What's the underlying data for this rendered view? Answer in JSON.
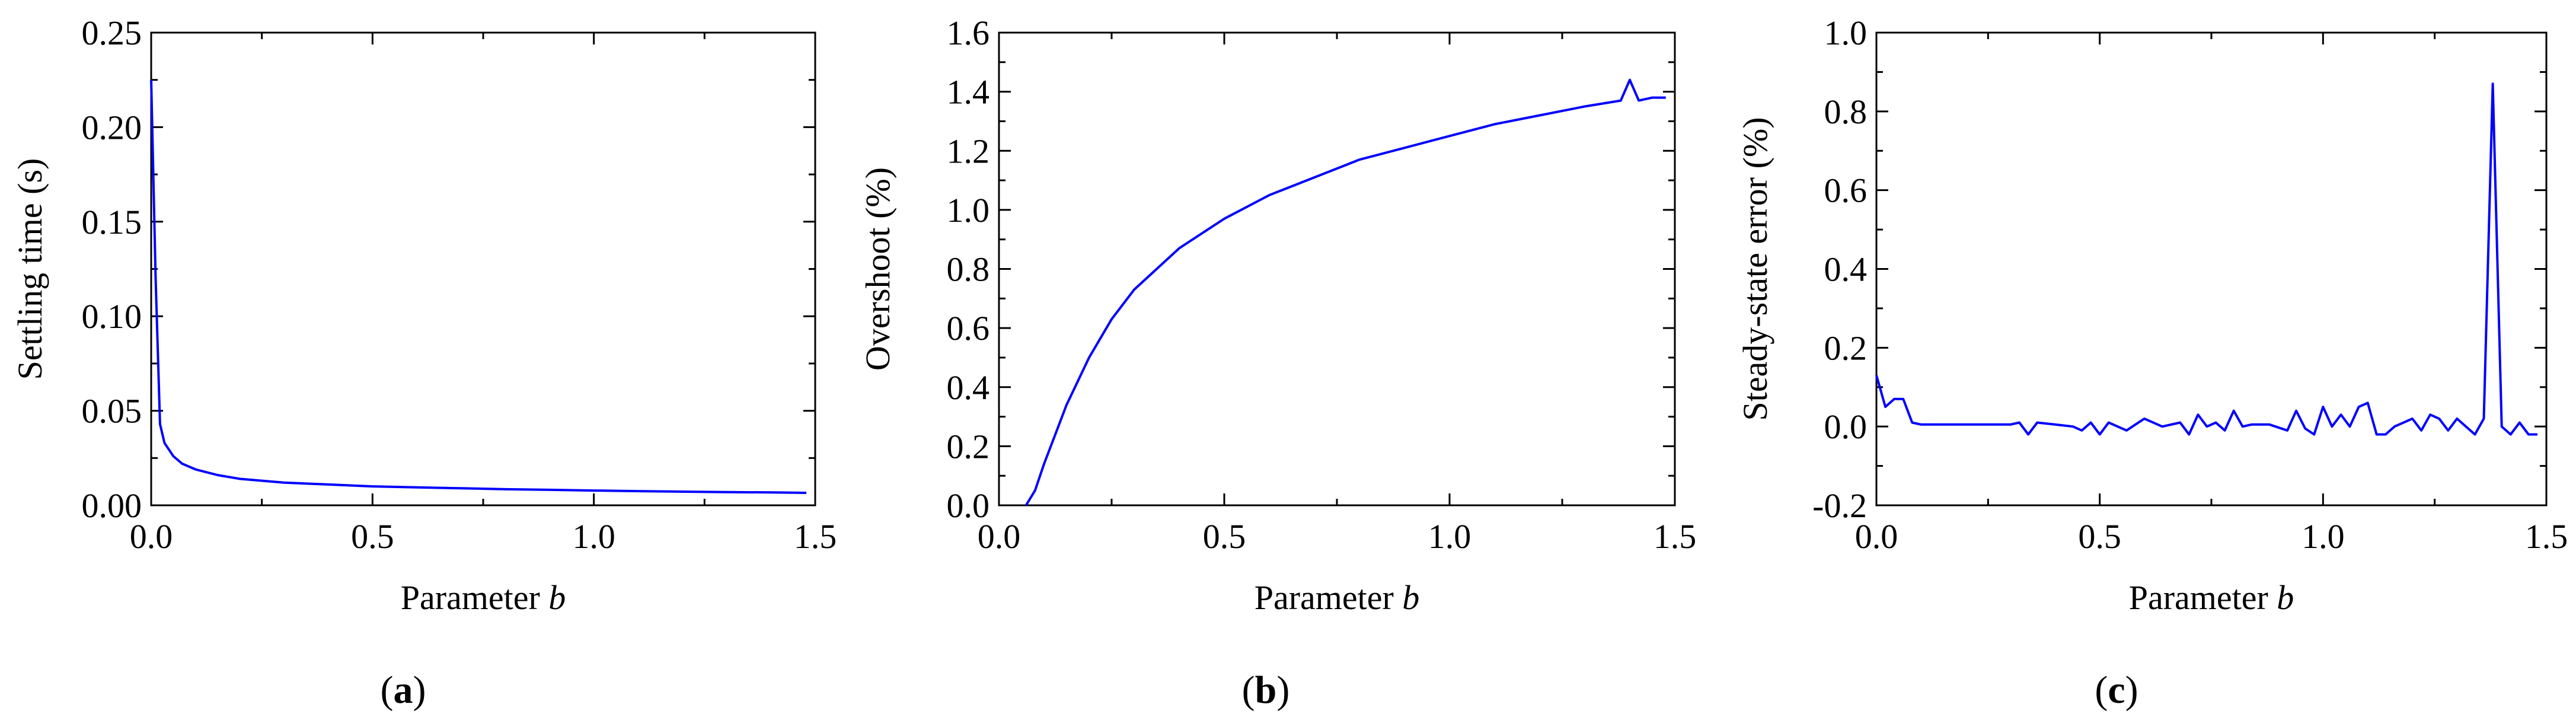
{
  "line_color": "#0000ff",
  "chart_data": [
    {
      "type": "line",
      "panel_label": "a",
      "xlabel_text": "Parameter ",
      "xlabel_var": "b",
      "ylabel": "Settling time (s)",
      "xlim": [
        0,
        1.5
      ],
      "ylim": [
        0,
        0.25
      ],
      "xticks": [
        "0.0",
        "0.5",
        "1.0",
        "1.5"
      ],
      "yticks": [
        "0.00",
        "0.05",
        "0.10",
        "0.15",
        "0.20",
        "0.25"
      ],
      "grid": false,
      "x": [
        0.0,
        0.01,
        0.02,
        0.03,
        0.05,
        0.07,
        0.1,
        0.15,
        0.2,
        0.3,
        0.4,
        0.5,
        0.6,
        0.7,
        0.8,
        0.9,
        1.0,
        1.1,
        1.2,
        1.3,
        1.4,
        1.48
      ],
      "values": [
        0.225,
        0.12,
        0.043,
        0.033,
        0.026,
        0.022,
        0.019,
        0.016,
        0.014,
        0.012,
        0.011,
        0.01,
        0.0095,
        0.009,
        0.0085,
        0.0082,
        0.0078,
        0.0075,
        0.0072,
        0.007,
        0.0068,
        0.0066
      ]
    },
    {
      "type": "line",
      "panel_label": "b",
      "xlabel_text": "Parameter ",
      "xlabel_var": "b",
      "ylabel": "Overshoot (%)",
      "xlim": [
        0,
        1.5
      ],
      "ylim": [
        0,
        1.6
      ],
      "xticks": [
        "0.0",
        "0.5",
        "1.0",
        "1.5"
      ],
      "yticks": [
        "0.0",
        "0.2",
        "0.4",
        "0.6",
        "0.8",
        "1.0",
        "1.2",
        "1.4",
        "1.6"
      ],
      "grid": false,
      "x": [
        0.06,
        0.08,
        0.1,
        0.15,
        0.2,
        0.25,
        0.3,
        0.4,
        0.5,
        0.6,
        0.7,
        0.8,
        0.9,
        1.0,
        1.1,
        1.2,
        1.3,
        1.38,
        1.4,
        1.42,
        1.45,
        1.48
      ],
      "values": [
        0.0,
        0.05,
        0.14,
        0.34,
        0.5,
        0.63,
        0.73,
        0.87,
        0.97,
        1.05,
        1.11,
        1.17,
        1.21,
        1.25,
        1.29,
        1.32,
        1.35,
        1.37,
        1.44,
        1.37,
        1.38,
        1.38
      ]
    },
    {
      "type": "line",
      "panel_label": "c",
      "xlabel_text": "Parameter ",
      "xlabel_var": "b",
      "ylabel": "Steady-state error (%)",
      "xlim": [
        0,
        1.5
      ],
      "ylim": [
        -0.2,
        1.0
      ],
      "xticks": [
        "0.0",
        "0.5",
        "1.0",
        "1.5"
      ],
      "yticks": [
        "-0.2",
        "0.0",
        "0.2",
        "0.4",
        "0.6",
        "0.8",
        "1.0"
      ],
      "grid": false,
      "x": [
        0.0,
        0.02,
        0.04,
        0.06,
        0.08,
        0.1,
        0.2,
        0.3,
        0.32,
        0.34,
        0.36,
        0.4,
        0.44,
        0.46,
        0.48,
        0.5,
        0.52,
        0.56,
        0.58,
        0.6,
        0.64,
        0.68,
        0.7,
        0.72,
        0.74,
        0.76,
        0.78,
        0.8,
        0.82,
        0.84,
        0.88,
        0.92,
        0.94,
        0.96,
        0.98,
        1.0,
        1.02,
        1.04,
        1.06,
        1.08,
        1.1,
        1.12,
        1.14,
        1.16,
        1.2,
        1.22,
        1.24,
        1.26,
        1.28,
        1.3,
        1.32,
        1.34,
        1.36,
        1.38,
        1.4,
        1.42,
        1.44,
        1.46,
        1.48
      ],
      "values": [
        0.13,
        0.05,
        0.07,
        0.07,
        0.01,
        0.005,
        0.005,
        0.005,
        0.01,
        -0.02,
        0.01,
        0.005,
        0.0,
        -0.01,
        0.01,
        -0.02,
        0.01,
        -0.01,
        0.005,
        0.02,
        0.0,
        0.01,
        -0.02,
        0.03,
        0.0,
        0.01,
        -0.01,
        0.04,
        0.0,
        0.005,
        0.005,
        -0.01,
        0.04,
        -0.005,
        -0.02,
        0.05,
        0.0,
        0.03,
        0.0,
        0.05,
        0.06,
        -0.02,
        -0.02,
        0.0,
        0.02,
        -0.01,
        0.03,
        0.02,
        -0.01,
        0.02,
        0.0,
        -0.02,
        0.02,
        0.87,
        0.0,
        -0.02,
        0.01,
        -0.02,
        -0.02
      ]
    }
  ]
}
